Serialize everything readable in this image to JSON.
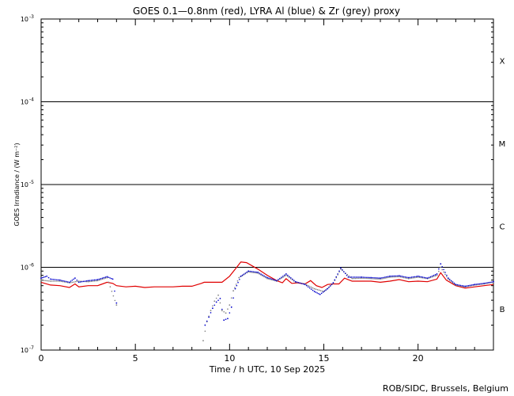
{
  "title": "GOES 0.1—0.8nm (red), LYRA Al (blue) & Zr (grey) proxy",
  "credit": "ROB/SIDC, Brussels, Belgium",
  "chart_data": {
    "type": "line",
    "xlabel": "Time / h UTC, 10 Sep 2025",
    "ylabel": "GOES Irradiance / (W m⁻²)",
    "xlim": [
      0,
      24
    ],
    "ylim": [
      1e-07,
      0.001
    ],
    "yscale": "log",
    "x_ticks": [
      {
        "v": 0,
        "label": "0"
      },
      {
        "v": 5,
        "label": "5"
      },
      {
        "v": 10,
        "label": "10"
      },
      {
        "v": 15,
        "label": "15"
      },
      {
        "v": 20,
        "label": "20"
      }
    ],
    "y_ticks": [
      {
        "v": 1e-07,
        "base": "10",
        "exp": "-7"
      },
      {
        "v": 1e-06,
        "base": "10",
        "exp": "-6"
      },
      {
        "v": 1e-05,
        "base": "10",
        "exp": "-5"
      },
      {
        "v": 0.0001,
        "base": "10",
        "exp": "-4"
      },
      {
        "v": 0.001,
        "base": "10",
        "exp": "-3"
      }
    ],
    "flare_classes": [
      {
        "label": "X",
        "v": 0.000316
      },
      {
        "label": "M",
        "v": 3.16e-05
      },
      {
        "label": "C",
        "v": 3.16e-06
      },
      {
        "label": "B",
        "v": 3.16e-07
      }
    ],
    "threshold_lines": [
      1e-06,
      1e-05,
      0.0001
    ],
    "series": [
      {
        "color": "#e00000",
        "style": "line",
        "points": [
          [
            0,
            6.6e-07
          ],
          [
            0.5,
            6.1e-07
          ],
          [
            1,
            6e-07
          ],
          [
            1.5,
            5.7e-07
          ],
          [
            1.8,
            6.3e-07
          ],
          [
            2,
            5.8e-07
          ],
          [
            2.5,
            6e-07
          ],
          [
            3,
            6e-07
          ],
          [
            3.5,
            6.6e-07
          ],
          [
            3.8,
            6.4e-07
          ],
          [
            4,
            6e-07
          ],
          [
            4.5,
            5.8e-07
          ],
          [
            5,
            5.9e-07
          ],
          [
            5.5,
            5.7e-07
          ],
          [
            6,
            5.8e-07
          ],
          [
            6.5,
            5.8e-07
          ],
          [
            7,
            5.8e-07
          ],
          [
            7.5,
            5.9e-07
          ],
          [
            8,
            5.9e-07
          ],
          [
            8.5,
            6.4e-07
          ],
          [
            8.65,
            6.6e-07
          ],
          [
            9.2,
            6.6e-07
          ],
          [
            9.6,
            6.6e-07
          ],
          [
            10,
            7.8e-07
          ],
          [
            10.3,
            9.5e-07
          ],
          [
            10.6,
            1.16e-06
          ],
          [
            10.9,
            1.14e-06
          ],
          [
            11.5,
            9.5e-07
          ],
          [
            12,
            8e-07
          ],
          [
            12.5,
            6.9e-07
          ],
          [
            12.8,
            6.5e-07
          ],
          [
            13,
            7.3e-07
          ],
          [
            13.3,
            6.4e-07
          ],
          [
            13.6,
            6.5e-07
          ],
          [
            14,
            6.3e-07
          ],
          [
            14.3,
            6.9e-07
          ],
          [
            14.6,
            6e-07
          ],
          [
            14.9,
            5.7e-07
          ],
          [
            15.2,
            6.2e-07
          ],
          [
            15.5,
            6.3e-07
          ],
          [
            15.8,
            6.3e-07
          ],
          [
            16.1,
            7.4e-07
          ],
          [
            16.5,
            6.8e-07
          ],
          [
            17,
            6.8e-07
          ],
          [
            17.5,
            6.8e-07
          ],
          [
            18,
            6.6e-07
          ],
          [
            18.5,
            6.8e-07
          ],
          [
            19,
            7.1e-07
          ],
          [
            19.5,
            6.7e-07
          ],
          [
            20,
            6.8e-07
          ],
          [
            20.5,
            6.7e-07
          ],
          [
            21,
            7.2e-07
          ],
          [
            21.2,
            8.6e-07
          ],
          [
            21.5,
            7e-07
          ],
          [
            22,
            6e-07
          ],
          [
            22.5,
            5.6e-07
          ],
          [
            23,
            5.8e-07
          ],
          [
            23.5,
            6e-07
          ],
          [
            24,
            6.2e-07
          ]
        ]
      },
      {
        "color": "#808080",
        "style": "dots",
        "points": [
          [
            0,
            7e-07
          ],
          [
            0.5,
            6.8e-07
          ],
          [
            1,
            6.8e-07
          ],
          [
            1.5,
            6.5e-07
          ],
          [
            2,
            6.8e-07
          ],
          [
            2.5,
            6.7e-07
          ],
          [
            3,
            6.9e-07
          ],
          [
            3.5,
            7.5e-07
          ],
          [
            4,
            3.5e-07
          ],
          [
            8.6,
            1.3e-07
          ],
          [
            8.8,
            2.2e-07
          ],
          [
            9.0,
            3e-07
          ],
          [
            9.2,
            3.9e-07
          ],
          [
            9.4,
            4.6e-07
          ],
          [
            9.6,
            3e-07
          ],
          [
            9.8,
            2.8e-07
          ],
          [
            10,
            3.5e-07
          ],
          [
            10.2,
            5.2e-07
          ],
          [
            10.5,
            7.5e-07
          ],
          [
            11,
            8.8e-07
          ],
          [
            11.5,
            8.5e-07
          ],
          [
            12,
            7.3e-07
          ],
          [
            12.5,
            6.8e-07
          ],
          [
            13,
            8e-07
          ],
          [
            13.5,
            6.6e-07
          ],
          [
            14,
            6.3e-07
          ],
          [
            14.5,
            5.5e-07
          ],
          [
            15,
            5.1e-07
          ],
          [
            15.5,
            6.4e-07
          ],
          [
            15.9,
            9.5e-07
          ],
          [
            16.5,
            7.3e-07
          ],
          [
            17,
            7.4e-07
          ],
          [
            17.5,
            7.3e-07
          ],
          [
            18,
            7.2e-07
          ],
          [
            18.5,
            7.6e-07
          ],
          [
            19,
            7.7e-07
          ],
          [
            19.5,
            7.3e-07
          ],
          [
            20,
            7.6e-07
          ],
          [
            20.5,
            7.3e-07
          ],
          [
            21,
            8e-07
          ],
          [
            21.2,
            1e-06
          ],
          [
            21.6,
            7.2e-07
          ],
          [
            22,
            6.1e-07
          ],
          [
            22.5,
            5.8e-07
          ],
          [
            23,
            6.1e-07
          ],
          [
            23.5,
            6.3e-07
          ],
          [
            24,
            6.6e-07
          ]
        ]
      },
      {
        "color": "#0000cc",
        "style": "dots",
        "points": [
          [
            0,
            7.4e-07
          ],
          [
            0.3,
            7.8e-07
          ],
          [
            0.5,
            7.2e-07
          ],
          [
            1,
            7e-07
          ],
          [
            1.5,
            6.6e-07
          ],
          [
            1.8,
            7.4e-07
          ],
          [
            2,
            6.6e-07
          ],
          [
            2.5,
            6.9e-07
          ],
          [
            3,
            7.1e-07
          ],
          [
            3.5,
            7.7e-07
          ],
          [
            3.8,
            7.2e-07
          ],
          [
            4,
            3.7e-07
          ],
          [
            8.7,
            2e-07
          ],
          [
            8.9,
            2.5e-07
          ],
          [
            9.1,
            3.2e-07
          ],
          [
            9.3,
            3.8e-07
          ],
          [
            9.5,
            4.2e-07
          ],
          [
            9.7,
            2.3e-07
          ],
          [
            9.9,
            2.4e-07
          ],
          [
            10.1,
            3.3e-07
          ],
          [
            10.3,
            5.5e-07
          ],
          [
            10.6,
            7.8e-07
          ],
          [
            11,
            9e-07
          ],
          [
            11.5,
            8.7e-07
          ],
          [
            12,
            7.5e-07
          ],
          [
            12.5,
            6.9e-07
          ],
          [
            13,
            8.3e-07
          ],
          [
            13.5,
            6.7e-07
          ],
          [
            14,
            6.2e-07
          ],
          [
            14.5,
            5.1e-07
          ],
          [
            14.8,
            4.7e-07
          ],
          [
            15.2,
            5.5e-07
          ],
          [
            15.5,
            6.5e-07
          ],
          [
            15.9,
            9.8e-07
          ],
          [
            16.3,
            7.6e-07
          ],
          [
            17,
            7.6e-07
          ],
          [
            17.5,
            7.5e-07
          ],
          [
            18,
            7.4e-07
          ],
          [
            18.5,
            7.8e-07
          ],
          [
            19,
            7.9e-07
          ],
          [
            19.5,
            7.5e-07
          ],
          [
            20,
            7.8e-07
          ],
          [
            20.5,
            7.4e-07
          ],
          [
            21,
            8.3e-07
          ],
          [
            21.2,
            1.1e-06
          ],
          [
            21.6,
            7.4e-07
          ],
          [
            22,
            6.2e-07
          ],
          [
            22.5,
            5.9e-07
          ],
          [
            23,
            6.2e-07
          ],
          [
            23.5,
            6.4e-07
          ],
          [
            24,
            6.7e-07
          ]
        ]
      }
    ]
  }
}
